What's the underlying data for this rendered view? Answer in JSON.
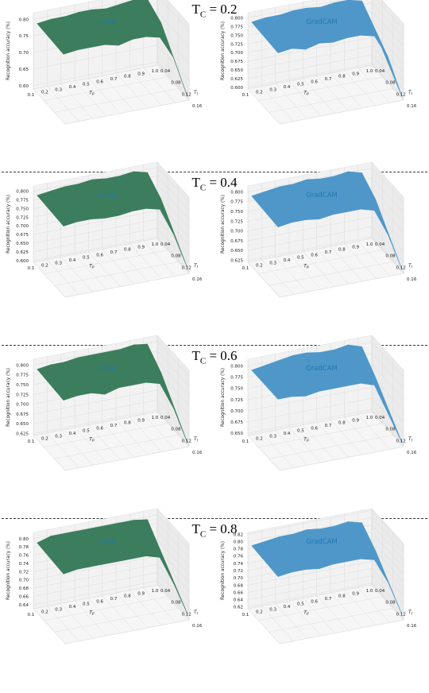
{
  "colors": {
    "lime": "#3c7d5e",
    "gradcam": "#4f97c9",
    "title": "#1f77b4"
  },
  "chart_data": [
    {
      "type": "surface3d",
      "section_title": "T",
      "section_subscript": "C",
      "section_value": " = 0.2",
      "plots": [
        {
          "title": "Lime",
          "color": "lime",
          "ylabel": "Recognition accuracy (%)",
          "xlabel": "T",
          "xlabel_sub": "P",
          "depth_label": "T",
          "depth_label_sub": "I",
          "x_ticks": [
            "0.1",
            "0.2",
            "0.3",
            "0.4",
            "0.5",
            "0.6",
            "0.7",
            "0.8",
            "0.9",
            "1.0"
          ],
          "depth_ticks": [
            "0.04",
            "0.08",
            "0.12",
            "0.16"
          ],
          "z_ticks": [
            "0.60",
            "0.65",
            "0.70",
            "0.75",
            "0.80"
          ],
          "zlim": [
            0.59,
            0.82
          ],
          "values_back": [
            0.8,
            0.805,
            0.805,
            0.81,
            0.81,
            0.805,
            0.81,
            0.815,
            0.81,
            0.73
          ],
          "values_front": [
            0.795,
            0.8,
            0.8,
            0.8,
            0.79,
            0.8,
            0.8,
            0.79,
            0.72,
            0.595
          ]
        },
        {
          "title": "GradCAM",
          "color": "gradcam",
          "ylabel": "Recognition accuracy (%)",
          "xlabel": "T",
          "xlabel_sub": "P",
          "depth_label": "T",
          "depth_label_sub": "I",
          "x_ticks": [
            "0.1",
            "0.2",
            "0.3",
            "0.4",
            "0.5",
            "0.6",
            "0.7",
            "0.8",
            "0.9",
            "1.0"
          ],
          "depth_ticks": [
            "0.04",
            "0.08",
            "0.12",
            "0.16"
          ],
          "z_ticks": [
            "0.600",
            "0.625",
            "0.650",
            "0.675",
            "0.700",
            "0.725",
            "0.750",
            "0.775",
            "0.800"
          ],
          "zlim": [
            0.595,
            0.815
          ],
          "values_back": [
            0.8,
            0.805,
            0.805,
            0.81,
            0.81,
            0.805,
            0.81,
            0.81,
            0.8,
            0.7
          ],
          "values_front": [
            0.795,
            0.8,
            0.79,
            0.8,
            0.795,
            0.8,
            0.8,
            0.79,
            0.72,
            0.6
          ]
        }
      ]
    },
    {
      "type": "surface3d",
      "section_title": "T",
      "section_subscript": "C",
      "section_value": " = 0.4",
      "plots": [
        {
          "title": "Lime",
          "color": "lime",
          "ylabel": "Recognition accuracy (%)",
          "xlabel": "T",
          "xlabel_sub": "P",
          "depth_label": "T",
          "depth_label_sub": "I",
          "x_ticks": [
            "0.1",
            "0.2",
            "0.3",
            "0.4",
            "0.5",
            "0.6",
            "0.7",
            "0.8",
            "0.9",
            "1.0"
          ],
          "depth_ticks": [
            "0.04",
            "0.08",
            "0.12",
            "0.16"
          ],
          "z_ticks": [
            "0.600",
            "0.625",
            "0.650",
            "0.675",
            "0.700",
            "0.725",
            "0.750",
            "0.775",
            "0.800"
          ],
          "zlim": [
            0.595,
            0.815
          ],
          "values_back": [
            0.8,
            0.805,
            0.81,
            0.81,
            0.815,
            0.81,
            0.81,
            0.815,
            0.805,
            0.72
          ],
          "values_front": [
            0.795,
            0.8,
            0.8,
            0.795,
            0.795,
            0.8,
            0.8,
            0.79,
            0.71,
            0.605
          ]
        },
        {
          "title": "GradCAM",
          "color": "gradcam",
          "ylabel": "Recognition accuracy (%)",
          "xlabel": "T",
          "xlabel_sub": "P",
          "depth_label": "T",
          "depth_label_sub": "I",
          "x_ticks": [
            "0.1",
            "0.2",
            "0.3",
            "0.4",
            "0.5",
            "0.6",
            "0.7",
            "0.8",
            "0.9",
            "1.0"
          ],
          "depth_ticks": [
            "0.04",
            "0.08",
            "0.12",
            "0.16"
          ],
          "z_ticks": [
            "0.625",
            "0.650",
            "0.675",
            "0.700",
            "0.725",
            "0.750",
            "0.775",
            "0.800"
          ],
          "zlim": [
            0.62,
            0.815
          ],
          "values_back": [
            0.8,
            0.805,
            0.81,
            0.81,
            0.815,
            0.81,
            0.81,
            0.815,
            0.805,
            0.73
          ],
          "values_front": [
            0.795,
            0.8,
            0.8,
            0.795,
            0.8,
            0.8,
            0.8,
            0.79,
            0.72,
            0.625
          ]
        }
      ]
    },
    {
      "type": "surface3d",
      "section_title": "T",
      "section_subscript": "C",
      "section_value": " = 0.6",
      "plots": [
        {
          "title": "Lime",
          "color": "lime",
          "ylabel": "Recognition accuracy (%)",
          "xlabel": "T",
          "xlabel_sub": "P",
          "depth_label": "T",
          "depth_label_sub": "I",
          "x_ticks": [
            "0.1",
            "0.2",
            "0.3",
            "0.4",
            "0.5",
            "0.6",
            "0.7",
            "0.8",
            "0.9",
            "1.0"
          ],
          "depth_ticks": [
            "0.04",
            "0.08",
            "0.12",
            "0.16"
          ],
          "z_ticks": [
            "0.625",
            "0.650",
            "0.675",
            "0.700",
            "0.725",
            "0.750",
            "0.775",
            "0.800"
          ],
          "zlim": [
            0.62,
            0.815
          ],
          "values_back": [
            0.8,
            0.805,
            0.805,
            0.81,
            0.81,
            0.81,
            0.81,
            0.815,
            0.81,
            0.73
          ],
          "values_front": [
            0.795,
            0.8,
            0.8,
            0.79,
            0.8,
            0.8,
            0.8,
            0.79,
            0.72,
            0.625
          ]
        },
        {
          "title": "GradCAM",
          "color": "gradcam",
          "ylabel": "Recognition accuracy (%)",
          "xlabel": "T",
          "xlabel_sub": "P",
          "depth_label": "T",
          "depth_label_sub": "I",
          "x_ticks": [
            "0.1",
            "0.2",
            "0.3",
            "0.4",
            "0.5",
            "0.6",
            "0.7",
            "0.8",
            "0.9",
            "1.0"
          ],
          "depth_ticks": [
            "0.04",
            "0.08",
            "0.12",
            "0.16"
          ],
          "z_ticks": [
            "0.650",
            "0.675",
            "0.700",
            "0.725",
            "0.750",
            "0.775",
            "0.800"
          ],
          "zlim": [
            0.645,
            0.815
          ],
          "values_back": [
            0.8,
            0.805,
            0.81,
            0.815,
            0.815,
            0.81,
            0.81,
            0.815,
            0.805,
            0.73
          ],
          "values_front": [
            0.8,
            0.8,
            0.795,
            0.8,
            0.8,
            0.8,
            0.8,
            0.79,
            0.72,
            0.65
          ]
        }
      ]
    },
    {
      "type": "surface3d",
      "section_title": "T",
      "section_subscript": "C",
      "section_value": " = 0.8",
      "plots": [
        {
          "title": "Lime",
          "color": "lime",
          "ylabel": "Recognition accuracy (%)",
          "xlabel": "T",
          "xlabel_sub": "P",
          "depth_label": "T",
          "depth_label_sub": "I",
          "x_ticks": [
            "0.1",
            "0.2",
            "0.3",
            "0.4",
            "0.5",
            "0.6",
            "0.7",
            "0.8",
            "0.9",
            "1.0"
          ],
          "depth_ticks": [
            "0.04",
            "0.08",
            "0.12",
            "0.16"
          ],
          "z_ticks": [
            "0.64",
            "0.66",
            "0.68",
            "0.70",
            "0.72",
            "0.74",
            "0.76",
            "0.78",
            "0.80"
          ],
          "zlim": [
            0.63,
            0.815
          ],
          "values_back": [
            0.8,
            0.81,
            0.81,
            0.81,
            0.81,
            0.81,
            0.81,
            0.81,
            0.805,
            0.72
          ],
          "values_front": [
            0.795,
            0.8,
            0.8,
            0.8,
            0.8,
            0.8,
            0.8,
            0.79,
            0.72,
            0.64
          ]
        },
        {
          "title": "GradCAM",
          "color": "gradcam",
          "ylabel": "Recognition accuracy (%)",
          "xlabel": "T",
          "xlabel_sub": "P",
          "depth_label": "T",
          "depth_label_sub": "I",
          "x_ticks": [
            "0.1",
            "0.2",
            "0.3",
            "0.4",
            "0.5",
            "0.6",
            "0.7",
            "0.8",
            "0.9",
            "1.0"
          ],
          "depth_ticks": [
            "0.04",
            "0.08",
            "0.12",
            "0.16"
          ],
          "z_ticks": [
            "0.62",
            "0.64",
            "0.66",
            "0.68",
            "0.70",
            "0.72",
            "0.74",
            "0.76",
            "0.78",
            "0.80",
            "0.82"
          ],
          "zlim": [
            0.615,
            0.825
          ],
          "values_back": [
            0.8,
            0.805,
            0.81,
            0.81,
            0.815,
            0.81,
            0.81,
            0.815,
            0.805,
            0.72
          ],
          "values_front": [
            0.795,
            0.8,
            0.8,
            0.795,
            0.8,
            0.8,
            0.8,
            0.79,
            0.72,
            0.625
          ]
        }
      ]
    }
  ]
}
